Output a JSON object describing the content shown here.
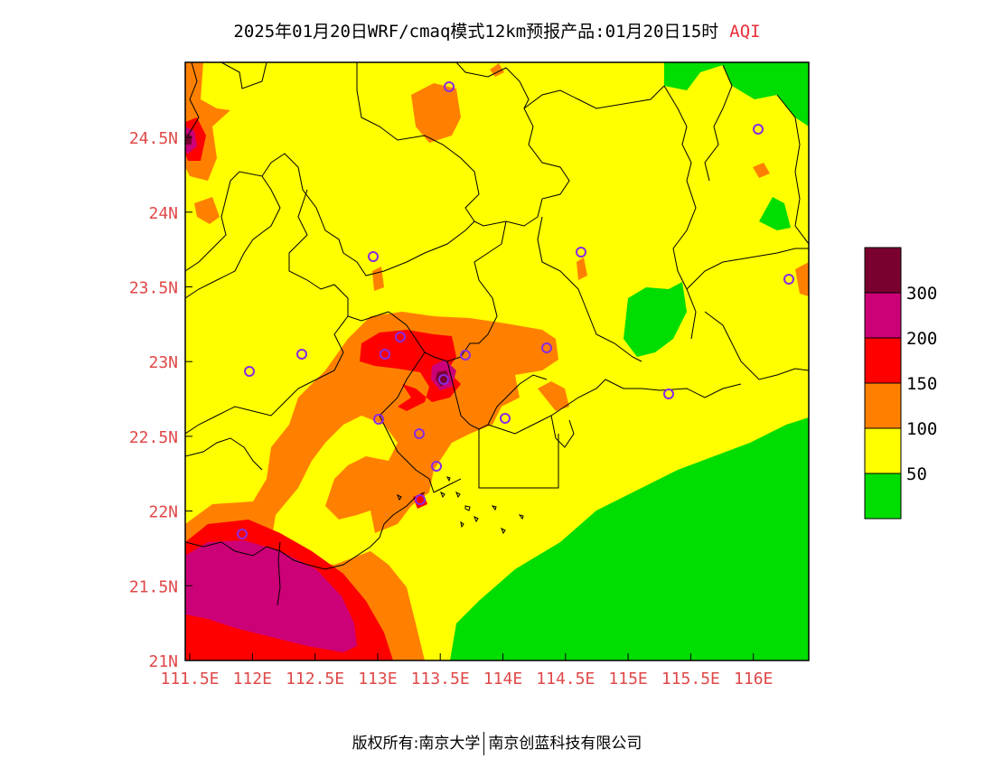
{
  "title": {
    "main": "2025年01月20日WRF/cmaq模式12km预报产品:01月20日15时",
    "variable": "AQI"
  },
  "axes": {
    "x_ticks": [
      "111.5E",
      "112E",
      "112.5E",
      "113E",
      "113.5E",
      "114E",
      "114.5E",
      "115E",
      "115.5E",
      "116E"
    ],
    "y_ticks": [
      "21N",
      "21.5N",
      "22N",
      "22.5N",
      "23N",
      "23.5N",
      "24N",
      "24.5N"
    ]
  },
  "legend": {
    "labels": [
      "300",
      "200",
      "150",
      "100",
      "50"
    ],
    "colors": [
      "#7a0030",
      "#cc0077",
      "#ff0000",
      "#ff8000",
      "#ffff00",
      "#00dd00"
    ]
  },
  "colors": {
    "good": "#00dd00",
    "moderate": "#ffff00",
    "unhealthy_sensitive": "#ff8000",
    "unhealthy": "#ff0000",
    "very_unhealthy": "#cc0077",
    "hazardous": "#7a0030",
    "station_marker": "#8a2be2",
    "tick_label": "#e04848"
  },
  "footer": {
    "left": "版权所有:南京大学",
    "right": "南京创蓝科技有限公司"
  }
}
